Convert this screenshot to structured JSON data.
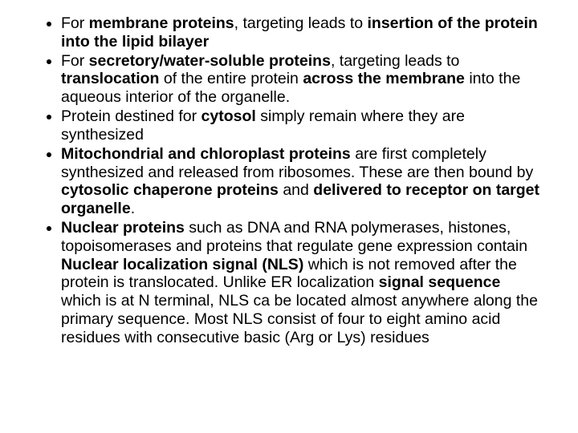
{
  "text_color": "#000000",
  "background_color": "#ffffff",
  "font_size_pt": 15,
  "bullets": [
    {
      "runs": [
        {
          "t": "For ",
          "b": false
        },
        {
          "t": "membrane proteins",
          "b": true
        },
        {
          "t": ", targeting leads to ",
          "b": false
        },
        {
          "t": "insertion of the protein into the lipid bilayer",
          "b": true
        }
      ]
    },
    {
      "runs": [
        {
          "t": "For ",
          "b": false
        },
        {
          "t": "secretory/water-soluble proteins",
          "b": true
        },
        {
          "t": ", targeting leads to ",
          "b": false
        },
        {
          "t": "translocation",
          "b": true
        },
        {
          "t": " of the entire protein ",
          "b": false
        },
        {
          "t": "across the membrane ",
          "b": true
        },
        {
          "t": "into the aqueous interior of the organelle.",
          "b": false
        }
      ]
    },
    {
      "runs": [
        {
          "t": "Protein destined for ",
          "b": false
        },
        {
          "t": "cytosol",
          "b": true
        },
        {
          "t": " simply remain where they are synthesized",
          "b": false
        }
      ]
    },
    {
      "runs": [
        {
          "t": "Mitochondrial and chloroplast proteins ",
          "b": true
        },
        {
          "t": "are first completely synthesized and released from ribosomes. These are then bound by ",
          "b": false
        },
        {
          "t": "cytosolic chaperone proteins ",
          "b": true
        },
        {
          "t": "and ",
          "b": false
        },
        {
          "t": "delivered to receptor on target organelle",
          "b": true
        },
        {
          "t": ".",
          "b": false
        }
      ]
    },
    {
      "runs": [
        {
          "t": "Nuclear proteins ",
          "b": true
        },
        {
          "t": "such as DNA and RNA polymerases, histones, topoisomerases and proteins that regulate gene expression contain ",
          "b": false
        },
        {
          "t": "Nuclear localization signal (NLS) ",
          "b": true
        },
        {
          "t": "which is not removed after the protein is translocated. Unlike ER localization ",
          "b": false
        },
        {
          "t": "signal sequence ",
          "b": true
        },
        {
          "t": "which is at N terminal, NLS ca be located almost anywhere along the primary sequence. Most NLS consist of four to eight amino acid residues with consecutive basic (Arg or Lys) residues",
          "b": false
        }
      ]
    }
  ]
}
